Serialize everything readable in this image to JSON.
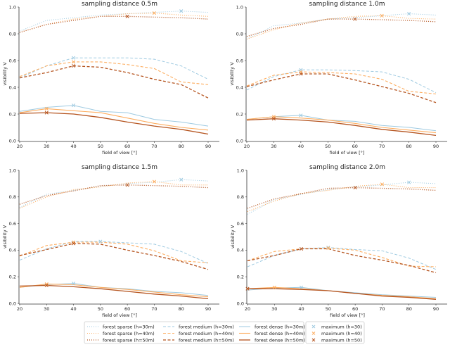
{
  "chart_data": {
    "type": "line",
    "layout": "2x2 grid",
    "x": [
      20,
      30,
      40,
      50,
      60,
      70,
      80,
      90
    ],
    "xlim": [
      20,
      90
    ],
    "ylim": [
      0,
      1
    ],
    "x_ticks": [
      "20",
      "30",
      "40",
      "50",
      "60",
      "70",
      "80",
      "90"
    ],
    "y_ticks": [
      "0.0",
      "0.2",
      "0.4",
      "0.6",
      "0.8",
      "1.0"
    ],
    "xlabel": "field of view [°]",
    "ylabel": "visibility V",
    "grid": false,
    "legend_placement": "bottom-center",
    "styles": {
      "h30": {
        "color": "#9ecae1"
      },
      "h40": {
        "color": "#fdae61"
      },
      "h50": {
        "color": "#b5541f"
      },
      "sparse": "dotted",
      "medium": "dashed",
      "dense": "solid"
    },
    "legend": [
      {
        "label": "forest sparse (h=30m)",
        "key": "sparse",
        "h": "h30"
      },
      {
        "label": "forest sparse (h=40m)",
        "key": "sparse",
        "h": "h40"
      },
      {
        "label": "forest sparse (h=50m)",
        "key": "sparse",
        "h": "h50"
      },
      {
        "label": "forest medium (h=30m)",
        "key": "medium",
        "h": "h30"
      },
      {
        "label": "forest medium (h=40m)",
        "key": "medium",
        "h": "h40"
      },
      {
        "label": "forest medium (h=50m)",
        "key": "medium",
        "h": "h50"
      },
      {
        "label": "forest dense (h=30m)",
        "key": "dense",
        "h": "h30"
      },
      {
        "label": "forest dense (h=40m)",
        "key": "dense",
        "h": "h40"
      },
      {
        "label": "forest dense (h=50m)",
        "key": "dense",
        "h": "h50"
      }
    ],
    "max_legend": [
      {
        "label": "maximum (h=30)",
        "h": "h30"
      },
      {
        "label": "maximum (h=40)",
        "h": "h40"
      },
      {
        "label": "maximum (h=50)",
        "h": "h50"
      }
    ],
    "panels": [
      {
        "title": "sampling distance 0.5m",
        "series": [
          {
            "key": "sparse",
            "h": "h30",
            "values": [
              0.82,
              0.9,
              0.92,
              0.94,
              0.95,
              0.96,
              0.97,
              0.96
            ]
          },
          {
            "key": "sparse",
            "h": "h40",
            "values": [
              0.81,
              0.87,
              0.91,
              0.93,
              0.95,
              0.955,
              0.94,
              0.93
            ]
          },
          {
            "key": "sparse",
            "h": "h50",
            "values": [
              0.81,
              0.87,
              0.9,
              0.93,
              0.93,
              0.925,
              0.92,
              0.91
            ]
          },
          {
            "key": "medium",
            "h": "h30",
            "values": [
              0.47,
              0.56,
              0.62,
              0.62,
              0.62,
              0.61,
              0.56,
              0.46
            ]
          },
          {
            "key": "medium",
            "h": "h40",
            "values": [
              0.48,
              0.56,
              0.59,
              0.59,
              0.57,
              0.54,
              0.44,
              0.42
            ]
          },
          {
            "key": "medium",
            "h": "h50",
            "values": [
              0.47,
              0.51,
              0.56,
              0.55,
              0.51,
              0.46,
              0.42,
              0.32
            ]
          },
          {
            "key": "dense",
            "h": "h30",
            "values": [
              0.22,
              0.25,
              0.265,
              0.22,
              0.21,
              0.16,
              0.14,
              0.11
            ]
          },
          {
            "key": "dense",
            "h": "h40",
            "values": [
              0.21,
              0.24,
              0.225,
              0.21,
              0.17,
              0.13,
              0.1,
              0.08
            ]
          },
          {
            "key": "dense",
            "h": "h50",
            "values": [
              0.205,
              0.21,
              0.2,
              0.175,
              0.14,
              0.11,
              0.085,
              0.05
            ]
          }
        ],
        "maxima": [
          {
            "h": "h30",
            "x": 80,
            "y": 0.97
          },
          {
            "h": "h30",
            "x": 40,
            "y": 0.62
          },
          {
            "h": "h30",
            "x": 40,
            "y": 0.265
          },
          {
            "h": "h40",
            "x": 70,
            "y": 0.955
          },
          {
            "h": "h40",
            "x": 40,
            "y": 0.59
          },
          {
            "h": "h40",
            "x": 30,
            "y": 0.24
          },
          {
            "h": "h50",
            "x": 60,
            "y": 0.93
          },
          {
            "h": "h50",
            "x": 40,
            "y": 0.56
          },
          {
            "h": "h50",
            "x": 30,
            "y": 0.21
          }
        ]
      },
      {
        "title": "sampling distance 1.0m",
        "series": [
          {
            "key": "sparse",
            "h": "h30",
            "values": [
              0.76,
              0.86,
              0.88,
              0.91,
              0.92,
              0.935,
              0.95,
              0.94
            ]
          },
          {
            "key": "sparse",
            "h": "h40",
            "values": [
              0.76,
              0.83,
              0.88,
              0.91,
              0.93,
              0.935,
              0.915,
              0.91
            ]
          },
          {
            "key": "sparse",
            "h": "h50",
            "values": [
              0.78,
              0.84,
              0.87,
              0.91,
              0.91,
              0.905,
              0.9,
              0.89
            ]
          },
          {
            "key": "medium",
            "h": "h30",
            "values": [
              0.38,
              0.48,
              0.53,
              0.53,
              0.525,
              0.515,
              0.46,
              0.36
            ]
          },
          {
            "key": "medium",
            "h": "h40",
            "values": [
              0.41,
              0.49,
              0.515,
              0.51,
              0.5,
              0.46,
              0.37,
              0.35
            ]
          },
          {
            "key": "medium",
            "h": "h50",
            "values": [
              0.405,
              0.455,
              0.5,
              0.5,
              0.455,
              0.405,
              0.355,
              0.285
            ]
          },
          {
            "key": "dense",
            "h": "h30",
            "values": [
              0.16,
              0.18,
              0.19,
              0.155,
              0.145,
              0.115,
              0.1,
              0.075
            ]
          },
          {
            "key": "dense",
            "h": "h40",
            "values": [
              0.16,
              0.18,
              0.17,
              0.155,
              0.13,
              0.1,
              0.08,
              0.06
            ]
          },
          {
            "key": "dense",
            "h": "h50",
            "values": [
              0.155,
              0.165,
              0.155,
              0.14,
              0.115,
              0.085,
              0.065,
              0.04
            ]
          }
        ],
        "maxima": [
          {
            "h": "h30",
            "x": 80,
            "y": 0.95
          },
          {
            "h": "h30",
            "x": 40,
            "y": 0.53
          },
          {
            "h": "h30",
            "x": 40,
            "y": 0.19
          },
          {
            "h": "h40",
            "x": 70,
            "y": 0.935
          },
          {
            "h": "h40",
            "x": 40,
            "y": 0.515
          },
          {
            "h": "h40",
            "x": 30,
            "y": 0.18
          },
          {
            "h": "h50",
            "x": 60,
            "y": 0.91
          },
          {
            "h": "h50",
            "x": 40,
            "y": 0.5
          },
          {
            "h": "h50",
            "x": 30,
            "y": 0.165
          }
        ]
      },
      {
        "title": "sampling distance 1.5m",
        "series": [
          {
            "key": "sparse",
            "h": "h30",
            "values": [
              0.72,
              0.82,
              0.85,
              0.88,
              0.9,
              0.91,
              0.93,
              0.92
            ]
          },
          {
            "key": "sparse",
            "h": "h40",
            "values": [
              0.715,
              0.8,
              0.855,
              0.875,
              0.905,
              0.915,
              0.89,
              0.89
            ]
          },
          {
            "key": "sparse",
            "h": "h50",
            "values": [
              0.745,
              0.81,
              0.845,
              0.885,
              0.89,
              0.885,
              0.88,
              0.87
            ]
          },
          {
            "key": "medium",
            "h": "h30",
            "values": [
              0.325,
              0.41,
              0.465,
              0.465,
              0.455,
              0.445,
              0.39,
              0.3
            ]
          },
          {
            "key": "medium",
            "h": "h40",
            "values": [
              0.355,
              0.435,
              0.46,
              0.46,
              0.445,
              0.395,
              0.32,
              0.305
            ]
          },
          {
            "key": "medium",
            "h": "h50",
            "values": [
              0.36,
              0.405,
              0.45,
              0.445,
              0.4,
              0.36,
              0.315,
              0.255
            ]
          },
          {
            "key": "dense",
            "h": "h30",
            "values": [
              0.12,
              0.14,
              0.15,
              0.12,
              0.11,
              0.09,
              0.08,
              0.06
            ]
          },
          {
            "key": "dense",
            "h": "h40",
            "values": [
              0.12,
              0.145,
              0.14,
              0.12,
              0.105,
              0.085,
              0.065,
              0.05
            ]
          },
          {
            "key": "dense",
            "h": "h50",
            "values": [
              0.13,
              0.135,
              0.125,
              0.11,
              0.09,
              0.07,
              0.055,
              0.035
            ]
          }
        ],
        "maxima": [
          {
            "h": "h30",
            "x": 80,
            "y": 0.93
          },
          {
            "h": "h30",
            "x": 50,
            "y": 0.465
          },
          {
            "h": "h30",
            "x": 40,
            "y": 0.15
          },
          {
            "h": "h40",
            "x": 70,
            "y": 0.915
          },
          {
            "h": "h40",
            "x": 40,
            "y": 0.46
          },
          {
            "h": "h40",
            "x": 30,
            "y": 0.145
          },
          {
            "h": "h50",
            "x": 60,
            "y": 0.89
          },
          {
            "h": "h50",
            "x": 40,
            "y": 0.45
          },
          {
            "h": "h50",
            "x": 30,
            "y": 0.135
          }
        ]
      },
      {
        "title": "sampling distance 2.0m",
        "series": [
          {
            "key": "sparse",
            "h": "h30",
            "values": [
              0.67,
              0.78,
              0.82,
              0.855,
              0.875,
              0.89,
              0.91,
              0.9
            ]
          },
          {
            "key": "sparse",
            "h": "h40",
            "values": [
              0.69,
              0.77,
              0.825,
              0.85,
              0.88,
              0.895,
              0.87,
              0.87
            ]
          },
          {
            "key": "sparse",
            "h": "h50",
            "values": [
              0.715,
              0.785,
              0.825,
              0.865,
              0.87,
              0.865,
              0.86,
              0.85
            ]
          },
          {
            "key": "medium",
            "h": "h30",
            "values": [
              0.275,
              0.36,
              0.41,
              0.42,
              0.405,
              0.395,
              0.34,
              0.255
            ]
          },
          {
            "key": "medium",
            "h": "h40",
            "values": [
              0.32,
              0.39,
              0.41,
              0.415,
              0.4,
              0.345,
              0.28,
              0.275
            ]
          },
          {
            "key": "medium",
            "h": "h50",
            "values": [
              0.32,
              0.36,
              0.41,
              0.41,
              0.36,
              0.325,
              0.285,
              0.23
            ]
          },
          {
            "key": "dense",
            "h": "h30",
            "values": [
              0.1,
              0.115,
              0.12,
              0.095,
              0.08,
              0.065,
              0.055,
              0.045
            ]
          },
          {
            "key": "dense",
            "h": "h40",
            "values": [
              0.11,
              0.12,
              0.11,
              0.095,
              0.075,
              0.06,
              0.05,
              0.035
            ]
          },
          {
            "key": "dense",
            "h": "h50",
            "values": [
              0.11,
              0.11,
              0.105,
              0.095,
              0.075,
              0.055,
              0.045,
              0.03
            ]
          }
        ],
        "maxima": [
          {
            "h": "h30",
            "x": 80,
            "y": 0.91
          },
          {
            "h": "h30",
            "x": 50,
            "y": 0.42
          },
          {
            "h": "h30",
            "x": 40,
            "y": 0.12
          },
          {
            "h": "h40",
            "x": 70,
            "y": 0.895
          },
          {
            "h": "h40",
            "x": 50,
            "y": 0.415
          },
          {
            "h": "h40",
            "x": 30,
            "y": 0.12
          },
          {
            "h": "h50",
            "x": 60,
            "y": 0.87
          },
          {
            "h": "h50",
            "x": 40,
            "y": 0.41
          },
          {
            "h": "h50",
            "x": 20,
            "y": 0.11
          }
        ]
      }
    ]
  }
}
